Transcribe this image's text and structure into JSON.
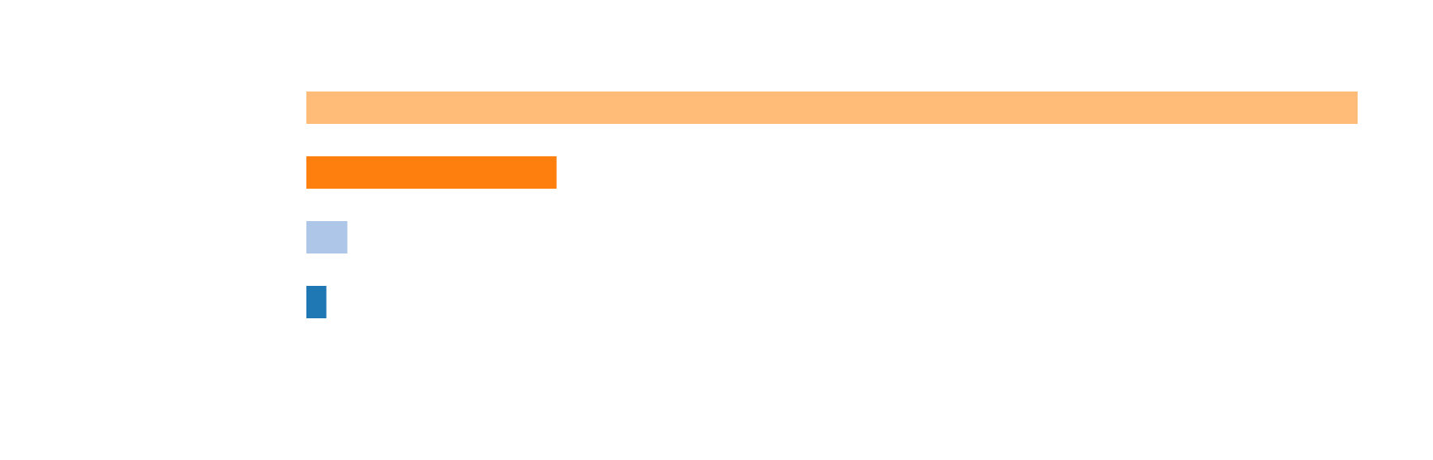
{
  "chart_data": {
    "type": "bar",
    "orientation": "horizontal",
    "categories": [
      "",
      "",
      "",
      ""
    ],
    "values": [
      100,
      23.8,
      3.9,
      1.9
    ],
    "colors": [
      "#ffbb78",
      "#ff7f0e",
      "#aec7e8",
      "#1f77b4"
    ],
    "title": "",
    "xlabel": "",
    "ylabel": "",
    "xlim": [
      0,
      100
    ],
    "grid": false,
    "legend": "none",
    "axes_visible": false
  }
}
